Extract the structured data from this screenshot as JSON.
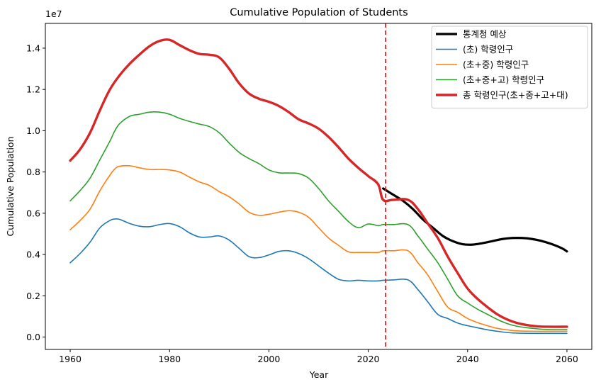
{
  "chart_data": {
    "type": "line",
    "title": "Cumulative Population of Students",
    "xlabel": "Year",
    "ylabel": "Cumulative Population",
    "y_offset_label": "1e7",
    "xlim": [
      1955,
      2065
    ],
    "ylim": [
      -0.06,
      1.52
    ],
    "y_scale": 10000000,
    "x_ticks": [
      1960,
      1980,
      2000,
      2020,
      2040,
      2060
    ],
    "x_tick_labels": [
      "1960",
      "1980",
      "2000",
      "2020",
      "2040",
      "2060"
    ],
    "y_ticks": [
      0.0,
      0.2,
      0.4,
      0.6,
      0.8,
      1.0,
      1.2,
      1.4
    ],
    "y_tick_labels": [
      "0.0",
      "0.2",
      "0.4",
      "0.6",
      "0.8",
      "1.0",
      "1.2",
      "1.4"
    ],
    "grid": false,
    "legend_position": "top-right",
    "vline": {
      "x": 2023.5,
      "color": "#d62728",
      "style": "dashed"
    },
    "series": [
      {
        "name": "통계청 예상",
        "color": "#000000",
        "width": 3.2,
        "points": [
          [
            2023,
            0.72
          ],
          [
            2025,
            0.69
          ],
          [
            2027,
            0.66
          ],
          [
            2029,
            0.62
          ],
          [
            2031,
            0.57
          ],
          [
            2033,
            0.53
          ],
          [
            2035,
            0.49
          ],
          [
            2037,
            0.465
          ],
          [
            2039,
            0.45
          ],
          [
            2041,
            0.448
          ],
          [
            2043,
            0.455
          ],
          [
            2045,
            0.465
          ],
          [
            2047,
            0.475
          ],
          [
            2049,
            0.48
          ],
          [
            2051,
            0.48
          ],
          [
            2053,
            0.475
          ],
          [
            2055,
            0.465
          ],
          [
            2057,
            0.45
          ],
          [
            2059,
            0.43
          ],
          [
            2060,
            0.415
          ]
        ]
      },
      {
        "name": "(초) 학령인구",
        "color": "#1f77b4",
        "width": 1.6,
        "points": [
          [
            1960,
            0.36
          ],
          [
            1962,
            0.405
          ],
          [
            1964,
            0.46
          ],
          [
            1966,
            0.53
          ],
          [
            1968,
            0.565
          ],
          [
            1969,
            0.572
          ],
          [
            1970,
            0.57
          ],
          [
            1972,
            0.55
          ],
          [
            1974,
            0.537
          ],
          [
            1976,
            0.535
          ],
          [
            1978,
            0.545
          ],
          [
            1980,
            0.55
          ],
          [
            1982,
            0.535
          ],
          [
            1984,
            0.505
          ],
          [
            1986,
            0.485
          ],
          [
            1988,
            0.485
          ],
          [
            1990,
            0.49
          ],
          [
            1992,
            0.47
          ],
          [
            1994,
            0.43
          ],
          [
            1996,
            0.39
          ],
          [
            1998,
            0.385
          ],
          [
            2000,
            0.398
          ],
          [
            2002,
            0.415
          ],
          [
            2004,
            0.418
          ],
          [
            2006,
            0.405
          ],
          [
            2008,
            0.38
          ],
          [
            2010,
            0.345
          ],
          [
            2012,
            0.31
          ],
          [
            2014,
            0.28
          ],
          [
            2016,
            0.272
          ],
          [
            2018,
            0.275
          ],
          [
            2020,
            0.272
          ],
          [
            2022,
            0.272
          ],
          [
            2023,
            0.275
          ],
          [
            2025,
            0.277
          ],
          [
            2028,
            0.277
          ],
          [
            2030,
            0.23
          ],
          [
            2032,
            0.17
          ],
          [
            2034,
            0.11
          ],
          [
            2036,
            0.09
          ],
          [
            2038,
            0.068
          ],
          [
            2040,
            0.055
          ],
          [
            2042,
            0.045
          ],
          [
            2044,
            0.035
          ],
          [
            2046,
            0.028
          ],
          [
            2048,
            0.022
          ],
          [
            2050,
            0.019
          ],
          [
            2054,
            0.018
          ],
          [
            2060,
            0.018
          ]
        ]
      },
      {
        "name": "(초+중) 학령인구",
        "color": "#ff7f0e",
        "width": 1.6,
        "points": [
          [
            1960,
            0.52
          ],
          [
            1962,
            0.565
          ],
          [
            1964,
            0.62
          ],
          [
            1966,
            0.71
          ],
          [
            1968,
            0.785
          ],
          [
            1969,
            0.815
          ],
          [
            1970,
            0.828
          ],
          [
            1972,
            0.83
          ],
          [
            1974,
            0.82
          ],
          [
            1976,
            0.812
          ],
          [
            1978,
            0.812
          ],
          [
            1980,
            0.81
          ],
          [
            1982,
            0.8
          ],
          [
            1984,
            0.775
          ],
          [
            1986,
            0.752
          ],
          [
            1988,
            0.735
          ],
          [
            1990,
            0.705
          ],
          [
            1992,
            0.68
          ],
          [
            1994,
            0.645
          ],
          [
            1996,
            0.605
          ],
          [
            1998,
            0.59
          ],
          [
            2000,
            0.595
          ],
          [
            2002,
            0.605
          ],
          [
            2004,
            0.612
          ],
          [
            2006,
            0.605
          ],
          [
            2008,
            0.58
          ],
          [
            2010,
            0.53
          ],
          [
            2012,
            0.48
          ],
          [
            2014,
            0.445
          ],
          [
            2016,
            0.413
          ],
          [
            2018,
            0.41
          ],
          [
            2020,
            0.41
          ],
          [
            2022,
            0.41
          ],
          [
            2023,
            0.418
          ],
          [
            2025,
            0.418
          ],
          [
            2028,
            0.418
          ],
          [
            2030,
            0.36
          ],
          [
            2032,
            0.3
          ],
          [
            2034,
            0.22
          ],
          [
            2036,
            0.145
          ],
          [
            2038,
            0.12
          ],
          [
            2040,
            0.09
          ],
          [
            2042,
            0.07
          ],
          [
            2044,
            0.055
          ],
          [
            2046,
            0.042
          ],
          [
            2048,
            0.035
          ],
          [
            2050,
            0.03
          ],
          [
            2054,
            0.028
          ],
          [
            2060,
            0.028
          ]
        ]
      },
      {
        "name": "(초+중+고) 학령인구",
        "color": "#2ca02c",
        "width": 1.6,
        "points": [
          [
            1960,
            0.66
          ],
          [
            1962,
            0.71
          ],
          [
            1964,
            0.77
          ],
          [
            1966,
            0.86
          ],
          [
            1968,
            0.95
          ],
          [
            1969,
            1.0
          ],
          [
            1970,
            1.035
          ],
          [
            1972,
            1.07
          ],
          [
            1974,
            1.08
          ],
          [
            1976,
            1.09
          ],
          [
            1978,
            1.09
          ],
          [
            1980,
            1.08
          ],
          [
            1982,
            1.06
          ],
          [
            1984,
            1.045
          ],
          [
            1986,
            1.032
          ],
          [
            1988,
            1.02
          ],
          [
            1990,
            0.99
          ],
          [
            1992,
            0.94
          ],
          [
            1994,
            0.895
          ],
          [
            1996,
            0.865
          ],
          [
            1998,
            0.84
          ],
          [
            2000,
            0.81
          ],
          [
            2002,
            0.796
          ],
          [
            2004,
            0.795
          ],
          [
            2006,
            0.792
          ],
          [
            2008,
            0.77
          ],
          [
            2010,
            0.72
          ],
          [
            2012,
            0.66
          ],
          [
            2014,
            0.61
          ],
          [
            2016,
            0.56
          ],
          [
            2018,
            0.53
          ],
          [
            2020,
            0.548
          ],
          [
            2022,
            0.54
          ],
          [
            2023,
            0.545
          ],
          [
            2025,
            0.545
          ],
          [
            2028,
            0.545
          ],
          [
            2030,
            0.49
          ],
          [
            2032,
            0.425
          ],
          [
            2034,
            0.36
          ],
          [
            2036,
            0.28
          ],
          [
            2038,
            0.2
          ],
          [
            2040,
            0.165
          ],
          [
            2042,
            0.135
          ],
          [
            2044,
            0.11
          ],
          [
            2046,
            0.085
          ],
          [
            2048,
            0.065
          ],
          [
            2050,
            0.052
          ],
          [
            2052,
            0.045
          ],
          [
            2054,
            0.04
          ],
          [
            2056,
            0.037
          ],
          [
            2060,
            0.036
          ]
        ]
      },
      {
        "name": "총 학령인구(초+중+고+대)",
        "color": "#d62728",
        "width": 3.4,
        "points": [
          [
            1960,
            0.855
          ],
          [
            1962,
            0.91
          ],
          [
            1964,
            0.99
          ],
          [
            1966,
            1.1
          ],
          [
            1968,
            1.2
          ],
          [
            1970,
            1.27
          ],
          [
            1972,
            1.325
          ],
          [
            1974,
            1.37
          ],
          [
            1976,
            1.41
          ],
          [
            1978,
            1.435
          ],
          [
            1980,
            1.44
          ],
          [
            1982,
            1.415
          ],
          [
            1984,
            1.39
          ],
          [
            1986,
            1.372
          ],
          [
            1988,
            1.368
          ],
          [
            1990,
            1.355
          ],
          [
            1992,
            1.3
          ],
          [
            1994,
            1.23
          ],
          [
            1996,
            1.18
          ],
          [
            1998,
            1.155
          ],
          [
            2000,
            1.14
          ],
          [
            2002,
            1.12
          ],
          [
            2004,
            1.09
          ],
          [
            2006,
            1.055
          ],
          [
            2008,
            1.035
          ],
          [
            2010,
            1.01
          ],
          [
            2012,
            0.97
          ],
          [
            2014,
            0.92
          ],
          [
            2016,
            0.865
          ],
          [
            2018,
            0.82
          ],
          [
            2020,
            0.78
          ],
          [
            2022,
            0.74
          ],
          [
            2023,
            0.665
          ],
          [
            2025,
            0.665
          ],
          [
            2028,
            0.665
          ],
          [
            2030,
            0.62
          ],
          [
            2032,
            0.55
          ],
          [
            2034,
            0.48
          ],
          [
            2036,
            0.39
          ],
          [
            2038,
            0.31
          ],
          [
            2040,
            0.235
          ],
          [
            2042,
            0.185
          ],
          [
            2044,
            0.145
          ],
          [
            2046,
            0.11
          ],
          [
            2048,
            0.085
          ],
          [
            2050,
            0.068
          ],
          [
            2052,
            0.058
          ],
          [
            2054,
            0.052
          ],
          [
            2056,
            0.05
          ],
          [
            2060,
            0.05
          ]
        ]
      }
    ]
  }
}
